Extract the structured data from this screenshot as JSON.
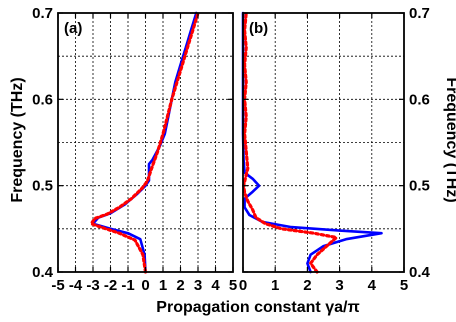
{
  "figure": {
    "ylabel": "Frequency (THz)",
    "xlabel": "Propagation constant γa/π"
  },
  "chart_data": [
    {
      "type": "line",
      "panel_label": "(a)",
      "xlim": [
        -5,
        5
      ],
      "ylim": [
        0.4,
        0.7
      ],
      "x_ticks": [
        "-5",
        "-4",
        "-3",
        "-2",
        "-1",
        "0",
        "1",
        "2",
        "3",
        "4",
        "5"
      ],
      "y_ticks": [
        "0.4",
        "0.5",
        "0.6",
        "0.7"
      ],
      "grid": true,
      "series": [
        {
          "color": "#0000ff",
          "style": "solid",
          "points": [
            [
              0.0,
              0.4
            ],
            [
              -0.05,
              0.42
            ],
            [
              -0.3,
              0.438
            ],
            [
              -1.0,
              0.445
            ],
            [
              -2.0,
              0.45
            ],
            [
              -3.0,
              0.456
            ],
            [
              -2.7,
              0.463
            ],
            [
              -2.0,
              0.468
            ],
            [
              -1.2,
              0.478
            ],
            [
              -0.5,
              0.49
            ],
            [
              0.0,
              0.5
            ],
            [
              0.2,
              0.506
            ],
            [
              0.2,
              0.525
            ],
            [
              0.4,
              0.53
            ],
            [
              0.8,
              0.545
            ],
            [
              1.1,
              0.56
            ],
            [
              1.3,
              0.58
            ],
            [
              1.5,
              0.6
            ],
            [
              1.7,
              0.62
            ],
            [
              2.0,
              0.64
            ],
            [
              2.3,
              0.66
            ],
            [
              2.6,
              0.68
            ],
            [
              2.9,
              0.7
            ]
          ]
        },
        {
          "color": "#ff0000",
          "style": "dotted",
          "points": [
            [
              0.0,
              0.4
            ],
            [
              -0.15,
              0.42
            ],
            [
              -0.6,
              0.437
            ],
            [
              -1.5,
              0.445
            ],
            [
              -2.4,
              0.451
            ],
            [
              -3.1,
              0.456
            ],
            [
              -2.9,
              0.462
            ],
            [
              -2.2,
              0.467
            ],
            [
              -1.5,
              0.475
            ],
            [
              -0.8,
              0.485
            ],
            [
              -0.2,
              0.497
            ],
            [
              0.1,
              0.505
            ],
            [
              0.35,
              0.52
            ],
            [
              0.7,
              0.54
            ],
            [
              1.0,
              0.56
            ],
            [
              1.25,
              0.58
            ],
            [
              1.5,
              0.6
            ],
            [
              1.8,
              0.62
            ],
            [
              2.1,
              0.64
            ],
            [
              2.4,
              0.66
            ],
            [
              2.7,
              0.68
            ],
            [
              3.0,
              0.7
            ]
          ]
        }
      ]
    },
    {
      "type": "line",
      "panel_label": "(b)",
      "xlim": [
        0,
        5
      ],
      "ylim": [
        0.4,
        0.7
      ],
      "x_ticks": [
        "0",
        "1",
        "2",
        "3",
        "4",
        "5"
      ],
      "y_ticks": [
        "0.4",
        "0.5",
        "0.6",
        "0.7"
      ],
      "grid": true,
      "series": [
        {
          "color": "#0000ff",
          "style": "solid",
          "points": [
            [
              2.1,
              0.4
            ],
            [
              2.0,
              0.41
            ],
            [
              2.1,
              0.42
            ],
            [
              2.5,
              0.43
            ],
            [
              3.2,
              0.438
            ],
            [
              4.3,
              0.445
            ],
            [
              3.0,
              0.448
            ],
            [
              1.5,
              0.452
            ],
            [
              0.6,
              0.458
            ],
            [
              0.2,
              0.466
            ],
            [
              0.05,
              0.475
            ],
            [
              0.05,
              0.485
            ],
            [
              0.3,
              0.493
            ],
            [
              0.5,
              0.5
            ],
            [
              0.3,
              0.508
            ],
            [
              0.05,
              0.515
            ],
            [
              0.02,
              0.53
            ],
            [
              0.0,
              0.56
            ],
            [
              0.0,
              0.6
            ],
            [
              0.0,
              0.65
            ],
            [
              0.0,
              0.7
            ]
          ]
        },
        {
          "color": "#ff0000",
          "style": "dotted",
          "points": [
            [
              2.3,
              0.4
            ],
            [
              2.1,
              0.41
            ],
            [
              2.3,
              0.42
            ],
            [
              2.6,
              0.43
            ],
            [
              2.9,
              0.44
            ],
            [
              2.2,
              0.445
            ],
            [
              1.2,
              0.45
            ],
            [
              0.7,
              0.456
            ],
            [
              0.4,
              0.463
            ],
            [
              0.3,
              0.472
            ],
            [
              0.15,
              0.482
            ],
            [
              0.05,
              0.492
            ],
            [
              0.02,
              0.5
            ],
            [
              0.15,
              0.52
            ],
            [
              0.1,
              0.54
            ],
            [
              0.05,
              0.56
            ],
            [
              0.1,
              0.58
            ],
            [
              0.05,
              0.6
            ],
            [
              0.1,
              0.62
            ],
            [
              0.05,
              0.64
            ],
            [
              0.1,
              0.66
            ],
            [
              0.05,
              0.68
            ],
            [
              0.1,
              0.7
            ]
          ]
        }
      ]
    }
  ]
}
